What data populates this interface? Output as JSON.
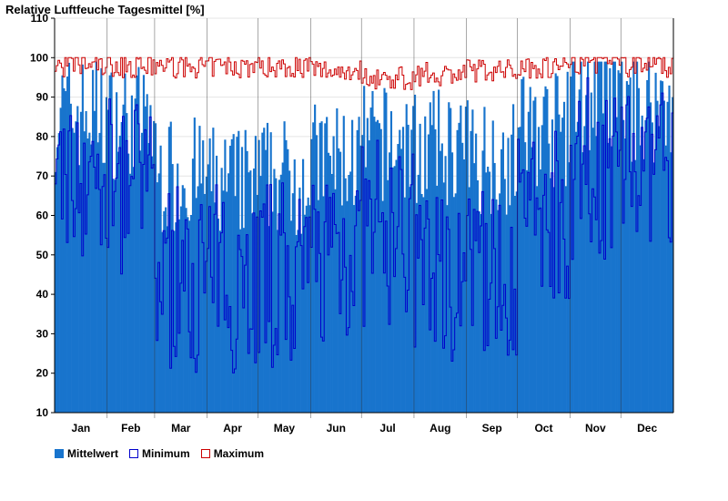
{
  "chart_data": {
    "type": "bar",
    "title": "Relative Luftfeuche Tagesmittel [%]",
    "xlabel": "",
    "ylabel": "Relative Luftfeuche Tagesmittel [%]",
    "ylim": [
      10,
      110
    ],
    "yticks": [
      10,
      20,
      30,
      40,
      50,
      60,
      70,
      80,
      90,
      100,
      110
    ],
    "months": [
      "Jan",
      "Feb",
      "Mar",
      "Apr",
      "May",
      "Jun",
      "Jul",
      "Aug",
      "Sep",
      "Oct",
      "Nov",
      "Dec"
    ],
    "days_in_month": [
      31,
      28,
      31,
      30,
      31,
      30,
      31,
      31,
      30,
      31,
      30,
      31
    ],
    "series_overview": [
      {
        "name": "Mittelwert",
        "type": "bar",
        "color": "#1874CD",
        "monthly_typical": [
          86,
          84,
          70,
          68,
          70,
          74,
          78,
          77,
          75,
          82,
          90,
          88
        ]
      },
      {
        "name": "Minimum",
        "type": "step-line",
        "color": "#0000CC",
        "monthly_typical": [
          72,
          70,
          45,
          45,
          45,
          52,
          55,
          48,
          48,
          62,
          72,
          76
        ],
        "annual_low": 18
      },
      {
        "name": "Maximum",
        "type": "step-line",
        "color": "#CC0000",
        "monthly_typical": [
          99,
          99,
          99,
          99,
          99,
          98,
          96,
          97,
          98,
          99,
          100,
          99
        ]
      }
    ],
    "legend": [
      "Mittelwert",
      "Minimum",
      "Maximum"
    ],
    "grid": true
  },
  "colors": {
    "mean": "#1874CD",
    "min": "#0000CC",
    "max": "#CC0000",
    "axis": "#000000",
    "grid": "#e4e4e4"
  }
}
